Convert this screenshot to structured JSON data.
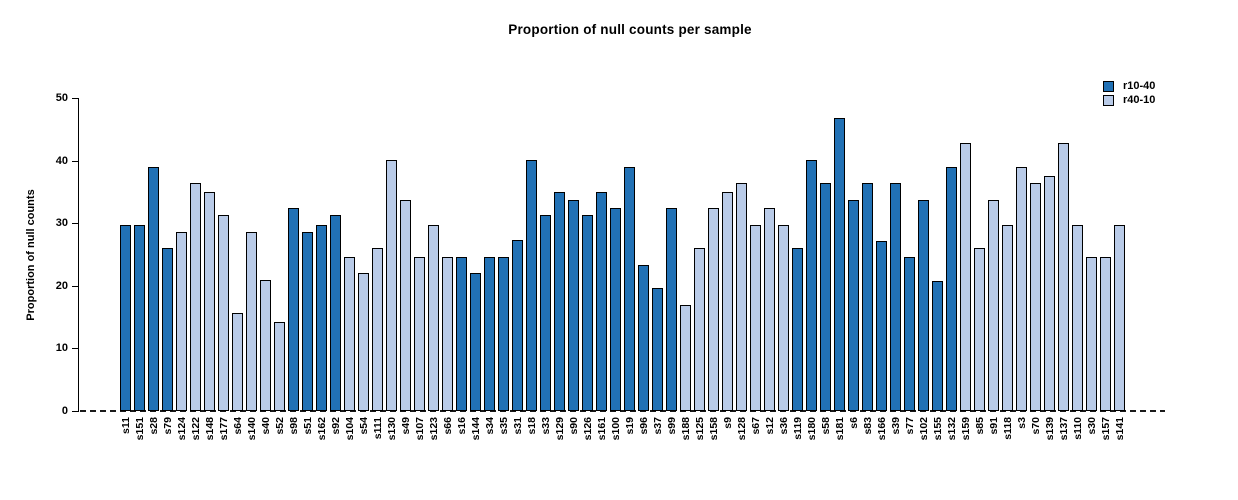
{
  "title": "Proportion of null counts per sample",
  "legend": {
    "items": [
      {
        "label": "r10-40",
        "color": "#2171b5"
      },
      {
        "label": "r40-10",
        "color": "#b9cbe8"
      }
    ]
  },
  "chart_data": {
    "type": "bar",
    "title": "Proportion of null counts per sample",
    "xlabel": "",
    "ylabel": "Proportion of null counts",
    "ylim": [
      0,
      50
    ],
    "yticks": [
      0,
      10,
      20,
      30,
      40,
      50
    ],
    "grid": false,
    "legend_position": "top-right",
    "zero_line_style": "dashed",
    "bar_border_color": "#000000",
    "series": [
      {
        "name": "r10-40",
        "color": "#2171b5"
      },
      {
        "name": "r40-10",
        "color": "#b9cbe8"
      }
    ],
    "samples": [
      {
        "label": "s11",
        "value": 29.8,
        "series": "r10-40"
      },
      {
        "label": "s151",
        "value": 29.8,
        "series": "r10-40"
      },
      {
        "label": "s28",
        "value": 39.0,
        "series": "r10-40"
      },
      {
        "label": "s79",
        "value": 26.0,
        "series": "r10-40"
      },
      {
        "label": "s124",
        "value": 28.6,
        "series": "r40-10"
      },
      {
        "label": "s122",
        "value": 36.4,
        "series": "r40-10"
      },
      {
        "label": "s148",
        "value": 35.0,
        "series": "r40-10"
      },
      {
        "label": "s177",
        "value": 31.3,
        "series": "r40-10"
      },
      {
        "label": "s64",
        "value": 15.7,
        "series": "r40-10"
      },
      {
        "label": "s140",
        "value": 28.6,
        "series": "r40-10"
      },
      {
        "label": "s40",
        "value": 20.9,
        "series": "r40-10"
      },
      {
        "label": "s52",
        "value": 14.3,
        "series": "r40-10"
      },
      {
        "label": "s98",
        "value": 32.5,
        "series": "r10-40"
      },
      {
        "label": "s51",
        "value": 28.6,
        "series": "r10-40"
      },
      {
        "label": "s162",
        "value": 29.8,
        "series": "r10-40"
      },
      {
        "label": "s92",
        "value": 31.3,
        "series": "r10-40"
      },
      {
        "label": "s104",
        "value": 24.6,
        "series": "r40-10"
      },
      {
        "label": "s54",
        "value": 22.1,
        "series": "r40-10"
      },
      {
        "label": "s111",
        "value": 26.0,
        "series": "r40-10"
      },
      {
        "label": "s130",
        "value": 40.2,
        "series": "r40-10"
      },
      {
        "label": "s49",
        "value": 33.8,
        "series": "r40-10"
      },
      {
        "label": "s107",
        "value": 24.6,
        "series": "r40-10"
      },
      {
        "label": "s123",
        "value": 29.8,
        "series": "r40-10"
      },
      {
        "label": "s66",
        "value": 24.6,
        "series": "r40-10"
      },
      {
        "label": "s16",
        "value": 24.6,
        "series": "r10-40"
      },
      {
        "label": "s144",
        "value": 22.1,
        "series": "r10-40"
      },
      {
        "label": "s34",
        "value": 24.6,
        "series": "r10-40"
      },
      {
        "label": "s35",
        "value": 24.6,
        "series": "r10-40"
      },
      {
        "label": "s31",
        "value": 27.4,
        "series": "r10-40"
      },
      {
        "label": "s18",
        "value": 40.2,
        "series": "r10-40"
      },
      {
        "label": "s33",
        "value": 31.3,
        "series": "r10-40"
      },
      {
        "label": "s129",
        "value": 35.0,
        "series": "r10-40"
      },
      {
        "label": "s90",
        "value": 33.8,
        "series": "r10-40"
      },
      {
        "label": "s126",
        "value": 31.3,
        "series": "r10-40"
      },
      {
        "label": "s161",
        "value": 35.0,
        "series": "r10-40"
      },
      {
        "label": "s100",
        "value": 32.5,
        "series": "r10-40"
      },
      {
        "label": "s19",
        "value": 39.0,
        "series": "r10-40"
      },
      {
        "label": "s96",
        "value": 23.4,
        "series": "r10-40"
      },
      {
        "label": "s37",
        "value": 19.6,
        "series": "r10-40"
      },
      {
        "label": "s99",
        "value": 32.5,
        "series": "r10-40"
      },
      {
        "label": "s188",
        "value": 16.9,
        "series": "r40-10"
      },
      {
        "label": "s125",
        "value": 26.0,
        "series": "r40-10"
      },
      {
        "label": "s158",
        "value": 32.5,
        "series": "r40-10"
      },
      {
        "label": "s9",
        "value": 35.0,
        "series": "r40-10"
      },
      {
        "label": "s128",
        "value": 36.4,
        "series": "r40-10"
      },
      {
        "label": "s67",
        "value": 29.8,
        "series": "r40-10"
      },
      {
        "label": "s12",
        "value": 32.5,
        "series": "r40-10"
      },
      {
        "label": "s36",
        "value": 29.8,
        "series": "r40-10"
      },
      {
        "label": "s119",
        "value": 26.0,
        "series": "r10-40"
      },
      {
        "label": "s180",
        "value": 40.2,
        "series": "r10-40"
      },
      {
        "label": "s58",
        "value": 36.4,
        "series": "r10-40"
      },
      {
        "label": "s181",
        "value": 46.8,
        "series": "r10-40"
      },
      {
        "label": "s6",
        "value": 33.8,
        "series": "r10-40"
      },
      {
        "label": "s83",
        "value": 36.4,
        "series": "r10-40"
      },
      {
        "label": "s166",
        "value": 27.2,
        "series": "r10-40"
      },
      {
        "label": "s39",
        "value": 36.4,
        "series": "r10-40"
      },
      {
        "label": "s77",
        "value": 24.6,
        "series": "r10-40"
      },
      {
        "label": "s102",
        "value": 33.8,
        "series": "r10-40"
      },
      {
        "label": "s155",
        "value": 20.8,
        "series": "r10-40"
      },
      {
        "label": "s132",
        "value": 39.0,
        "series": "r10-40"
      },
      {
        "label": "s159",
        "value": 42.8,
        "series": "r40-10"
      },
      {
        "label": "s85",
        "value": 26.0,
        "series": "r40-10"
      },
      {
        "label": "s91",
        "value": 33.8,
        "series": "r40-10"
      },
      {
        "label": "s118",
        "value": 29.8,
        "series": "r40-10"
      },
      {
        "label": "s3",
        "value": 39.0,
        "series": "r40-10"
      },
      {
        "label": "s70",
        "value": 36.4,
        "series": "r40-10"
      },
      {
        "label": "s139",
        "value": 37.6,
        "series": "r40-10"
      },
      {
        "label": "s137",
        "value": 42.8,
        "series": "r40-10"
      },
      {
        "label": "s110",
        "value": 29.8,
        "series": "r40-10"
      },
      {
        "label": "s30",
        "value": 24.6,
        "series": "r40-10"
      },
      {
        "label": "s157",
        "value": 24.6,
        "series": "r40-10"
      },
      {
        "label": "s141",
        "value": 29.8,
        "series": "r40-10"
      }
    ]
  }
}
